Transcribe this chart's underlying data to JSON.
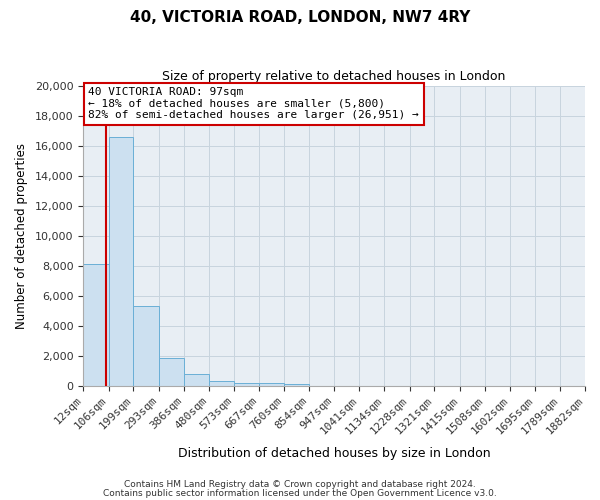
{
  "title": "40, VICTORIA ROAD, LONDON, NW7 4RY",
  "subtitle": "Size of property relative to detached houses in London",
  "xlabel": "Distribution of detached houses by size in London",
  "ylabel": "Number of detached properties",
  "bin_labels": [
    "12sqm",
    "106sqm",
    "199sqm",
    "293sqm",
    "386sqm",
    "480sqm",
    "573sqm",
    "667sqm",
    "760sqm",
    "854sqm",
    "947sqm",
    "1041sqm",
    "1134sqm",
    "1228sqm",
    "1321sqm",
    "1415sqm",
    "1508sqm",
    "1602sqm",
    "1695sqm",
    "1789sqm",
    "1882sqm"
  ],
  "bin_edges": [
    12,
    106,
    199,
    293,
    386,
    480,
    573,
    667,
    760,
    854,
    947,
    1041,
    1134,
    1228,
    1321,
    1415,
    1508,
    1602,
    1695,
    1789,
    1882
  ],
  "bar_heights": [
    8100,
    16600,
    5300,
    1850,
    780,
    320,
    200,
    170,
    130,
    0,
    0,
    0,
    0,
    0,
    0,
    0,
    0,
    0,
    0,
    0
  ],
  "bar_color": "#cce0f0",
  "bar_edgecolor": "#6aafd6",
  "property_line_x": 97,
  "property_line_color": "#cc0000",
  "annotation_title": "40 VICTORIA ROAD: 97sqm",
  "annotation_line1": "← 18% of detached houses are smaller (5,800)",
  "annotation_line2": "82% of semi-detached houses are larger (26,951) →",
  "ylim": [
    0,
    20000
  ],
  "yticks": [
    0,
    2000,
    4000,
    6000,
    8000,
    10000,
    12000,
    14000,
    16000,
    18000,
    20000
  ],
  "footnote1": "Contains HM Land Registry data © Crown copyright and database right 2024.",
  "footnote2": "Contains public sector information licensed under the Open Government Licence v3.0.",
  "background_color": "#ffffff",
  "plot_background": "#e8eef4",
  "grid_color": "#c8d4de"
}
